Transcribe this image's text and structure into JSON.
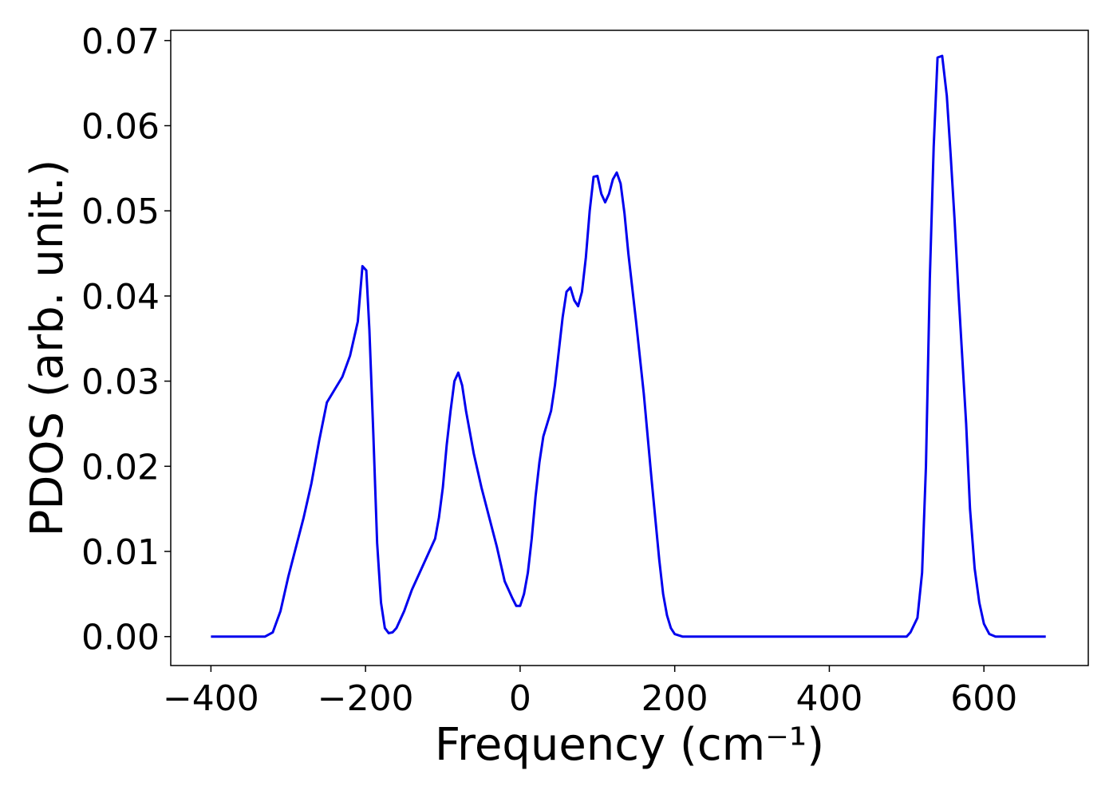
{
  "chart_data": {
    "type": "line",
    "x_label": "Frequency (cm⁻¹)",
    "y_label": "PDOS (arb. unit.)",
    "color": "#0000ee",
    "xlim": [
      -452,
      735
    ],
    "ylim": [
      -0.0034,
      0.0712
    ],
    "xticks": [
      {
        "value": -400,
        "label": "−400"
      },
      {
        "value": -200,
        "label": "−200"
      },
      0,
      200,
      400,
      600
    ],
    "yticks": [
      {
        "value": 0,
        "label": "0.00"
      },
      0.01,
      0.02,
      0.03,
      0.04,
      0.05,
      0.06,
      0.07
    ],
    "x": [
      -400,
      -330,
      -320,
      -310,
      -300,
      -290,
      -280,
      -270,
      -260,
      -250,
      -240,
      -230,
      -220,
      -210,
      -204,
      -199,
      -195,
      -190,
      -185,
      -180,
      -175,
      -170,
      -165,
      -160,
      -150,
      -140,
      -130,
      -120,
      -110,
      -105,
      -100,
      -95,
      -90,
      -85,
      -80,
      -75,
      -70,
      -60,
      -50,
      -40,
      -30,
      -20,
      -10,
      -5,
      0,
      5,
      10,
      15,
      20,
      25,
      30,
      40,
      45,
      50,
      55,
      60,
      65,
      70,
      75,
      80,
      85,
      90,
      95,
      100,
      105,
      110,
      115,
      120,
      125,
      130,
      135,
      140,
      150,
      160,
      170,
      180,
      185,
      190,
      195,
      200,
      210,
      500,
      505,
      514,
      520,
      525,
      530,
      535,
      540,
      546,
      552,
      557,
      562,
      567,
      577,
      582,
      588,
      594,
      600,
      607,
      615,
      680
    ],
    "values": [
      0,
      0,
      0.0005,
      0.003,
      0.007,
      0.0105,
      0.014,
      0.018,
      0.023,
      0.0275,
      0.029,
      0.0305,
      0.033,
      0.037,
      0.0435,
      0.043,
      0.036,
      0.024,
      0.011,
      0.004,
      0.001,
      0.0004,
      0.0005,
      0.001,
      0.003,
      0.0055,
      0.0075,
      0.0095,
      0.0115,
      0.014,
      0.0175,
      0.0225,
      0.0265,
      0.03,
      0.031,
      0.0295,
      0.0265,
      0.0215,
      0.0175,
      0.014,
      0.0105,
      0.0065,
      0.0045,
      0.0036,
      0.0036,
      0.005,
      0.0075,
      0.0115,
      0.0165,
      0.0205,
      0.0235,
      0.0265,
      0.0295,
      0.0335,
      0.0375,
      0.0405,
      0.041,
      0.0395,
      0.0388,
      0.0405,
      0.0445,
      0.05,
      0.054,
      0.0541,
      0.052,
      0.051,
      0.052,
      0.0537,
      0.0545,
      0.0532,
      0.0497,
      0.045,
      0.037,
      0.0285,
      0.0185,
      0.009,
      0.005,
      0.0025,
      0.001,
      0.0003,
      0,
      0,
      0.0005,
      0.0022,
      0.0075,
      0.02,
      0.042,
      0.0575,
      0.068,
      0.0682,
      0.0635,
      0.0565,
      0.049,
      0.0405,
      0.025,
      0.015,
      0.008,
      0.004,
      0.0015,
      0.0003,
      0,
      0
    ]
  }
}
